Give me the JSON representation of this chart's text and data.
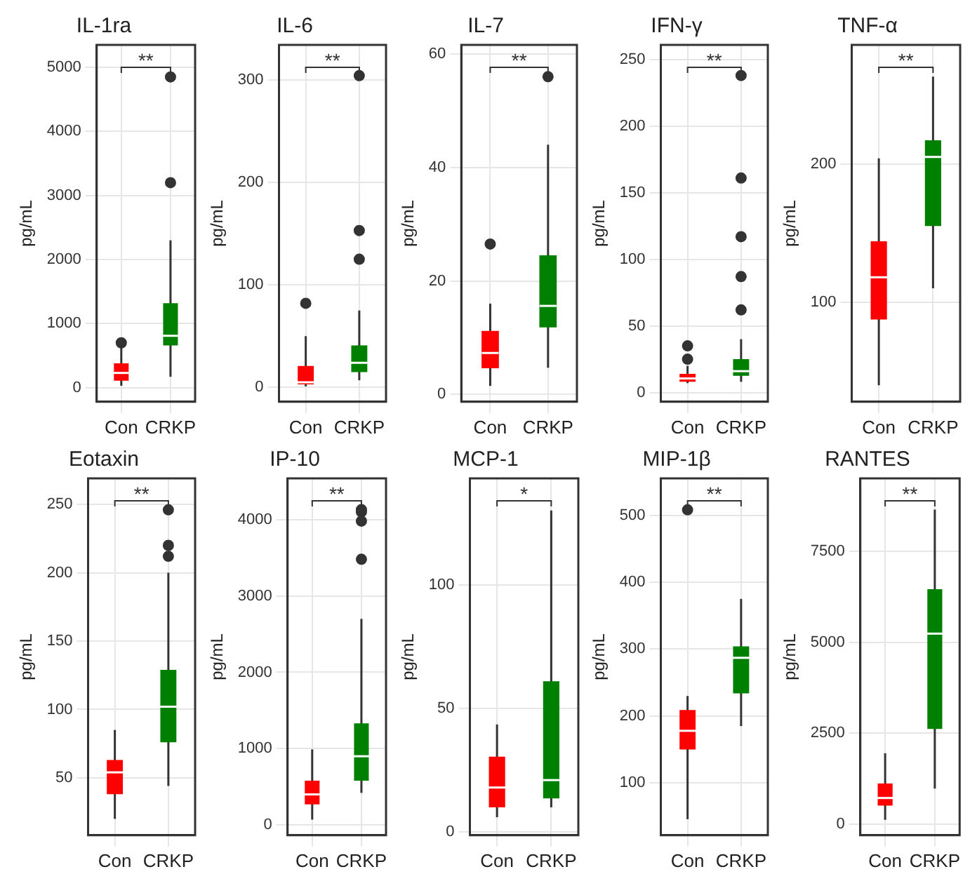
{
  "chart_data": [
    {
      "type": "box",
      "title": "IL-1ra",
      "ylabel": "pg/mL",
      "categories": [
        "Con",
        "CRKP"
      ],
      "colors": [
        "#ff0000",
        "#008000"
      ],
      "ylim": [
        -220,
        5350
      ],
      "yticks": [
        0,
        1000,
        2000,
        3000,
        4000,
        5000
      ],
      "grid": true,
      "annotations": [
        "**"
      ],
      "boxes": [
        {
          "low": 30,
          "q1": 110,
          "median": 230,
          "q3": 380,
          "high": 650,
          "outliers": [
            700
          ]
        },
        {
          "low": 170,
          "q1": 660,
          "median": 810,
          "q3": 1320,
          "high": 2300,
          "outliers": [
            3200,
            4850
          ]
        }
      ]
    },
    {
      "type": "box",
      "title": "IL-6",
      "ylabel": "pg/mL",
      "categories": [
        "Con",
        "CRKP"
      ],
      "colors": [
        "#ff0000",
        "#008000"
      ],
      "ylim": [
        -14,
        334
      ],
      "yticks": [
        0,
        100,
        200,
        300
      ],
      "grid": true,
      "annotations": [
        "**"
      ],
      "boxes": [
        {
          "low": 1,
          "q1": 3,
          "median": 5,
          "q3": 21,
          "high": 50,
          "outliers": [
            82
          ]
        },
        {
          "low": 7,
          "q1": 15,
          "median": 24,
          "q3": 41,
          "high": 75,
          "outliers": [
            125,
            153,
            304
          ]
        }
      ]
    },
    {
      "type": "box",
      "title": "IL-7",
      "ylabel": "pg/mL",
      "categories": [
        "Con",
        "CRKP"
      ],
      "colors": [
        "#ff0000",
        "#008000"
      ],
      "ylim": [
        -1.3,
        61.6
      ],
      "yticks": [
        0,
        20,
        40,
        60
      ],
      "grid": true,
      "annotations": [
        "**"
      ],
      "boxes": [
        {
          "low": 1.5,
          "q1": 4.6,
          "median": 7.3,
          "q3": 11.2,
          "high": 16,
          "outliers": [
            26.5
          ]
        },
        {
          "low": 4.7,
          "q1": 11.8,
          "median": 15.6,
          "q3": 24.5,
          "high": 44,
          "outliers": [
            56
          ]
        }
      ]
    },
    {
      "type": "box",
      "title": "IFN-γ",
      "ylabel": "pg/mL",
      "categories": [
        "Con",
        "CRKP"
      ],
      "colors": [
        "#ff0000",
        "#008000"
      ],
      "ylim": [
        -7,
        261
      ],
      "yticks": [
        0,
        50,
        100,
        150,
        200,
        250
      ],
      "grid": true,
      "annotations": [
        "**"
      ],
      "boxes": [
        {
          "low": 7,
          "q1": 8,
          "median": 10.5,
          "q3": 14,
          "high": 20,
          "outliers": [
            25,
            35
          ]
        },
        {
          "low": 8,
          "q1": 12.5,
          "median": 16,
          "q3": 25,
          "high": 40,
          "outliers": [
            62,
            87,
            117,
            161,
            238
          ]
        }
      ]
    },
    {
      "type": "box",
      "title": "TNF-α",
      "ylabel": "pg/mL",
      "categories": [
        "Con",
        "CRKP"
      ],
      "colors": [
        "#ff0000",
        "#008000"
      ],
      "ylim": [
        28,
        286
      ],
      "yticks": [
        100,
        200
      ],
      "grid": true,
      "annotations": [
        "**"
      ],
      "boxes": [
        {
          "low": 40,
          "q1": 87.5,
          "median": 118,
          "q3": 144,
          "high": 204
        },
        {
          "low": 110,
          "q1": 155,
          "median": 205,
          "q3": 217,
          "high": 263
        }
      ]
    },
    {
      "type": "box",
      "title": "Eotaxin",
      "ylabel": "pg/mL",
      "categories": [
        "Con",
        "CRKP"
      ],
      "colors": [
        "#ff0000",
        "#008000"
      ],
      "ylim": [
        8,
        269
      ],
      "yticks": [
        50,
        100,
        150,
        200,
        250
      ],
      "grid": true,
      "annotations": [
        "**"
      ],
      "boxes": [
        {
          "low": 20,
          "q1": 38,
          "median": 54,
          "q3": 63,
          "high": 85
        },
        {
          "low": 44,
          "q1": 76,
          "median": 102,
          "q3": 129,
          "high": 200,
          "outliers": [
            212,
            220,
            246
          ]
        }
      ]
    },
    {
      "type": "box",
      "title": "IP-10",
      "ylabel": "pg/mL",
      "categories": [
        "Con",
        "CRKP"
      ],
      "colors": [
        "#ff0000",
        "#008000"
      ],
      "ylim": [
        -135,
        4540
      ],
      "yticks": [
        0,
        1000,
        2000,
        3000,
        4000
      ],
      "grid": true,
      "annotations": [
        "**"
      ],
      "boxes": [
        {
          "low": 70,
          "q1": 270,
          "median": 400,
          "q3": 580,
          "high": 990
        },
        {
          "low": 420,
          "q1": 580,
          "median": 900,
          "q3": 1330,
          "high": 2700,
          "outliers": [
            3480,
            3980,
            4100,
            4130
          ]
        }
      ]
    },
    {
      "type": "box",
      "title": "MCP-1",
      "ylabel": "pg/mL",
      "categories": [
        "Con",
        "CRKP"
      ],
      "colors": [
        "#ff0000",
        "#008000"
      ],
      "ylim": [
        -1.3,
        143
      ],
      "yticks": [
        0,
        50,
        100
      ],
      "grid": true,
      "annotations": [
        "*"
      ],
      "boxes": [
        {
          "low": 6,
          "q1": 10,
          "median": 18,
          "q3": 30.5,
          "high": 43.5
        },
        {
          "low": 10,
          "q1": 13.6,
          "median": 21,
          "q3": 61,
          "high": 130
        }
      ]
    },
    {
      "type": "box",
      "title": "MIP-1β",
      "ylabel": "pg/mL",
      "categories": [
        "Con",
        "CRKP"
      ],
      "colors": [
        "#ff0000",
        "#008000"
      ],
      "ylim": [
        22,
        555
      ],
      "yticks": [
        100,
        200,
        300,
        400,
        500
      ],
      "grid": true,
      "annotations": [
        "**"
      ],
      "boxes": [
        {
          "low": 46,
          "q1": 150,
          "median": 178,
          "q3": 209,
          "high": 230,
          "outliers": [
            508
          ]
        },
        {
          "low": 185,
          "q1": 234,
          "median": 287,
          "q3": 304,
          "high": 375
        }
      ]
    },
    {
      "type": "box",
      "title": "RANTES",
      "ylabel": "pg/mL",
      "categories": [
        "Con",
        "CRKP"
      ],
      "colors": [
        "#ff0000",
        "#008000"
      ],
      "ylim": [
        -305,
        9510
      ],
      "yticks": [
        0,
        2500,
        5000,
        7500
      ],
      "grid": true,
      "annotations": [
        "**"
      ],
      "boxes": [
        {
          "low": 120,
          "q1": 510,
          "median": 720,
          "q3": 1120,
          "high": 1950
        },
        {
          "low": 980,
          "q1": 2620,
          "median": 5240,
          "q3": 6460,
          "high": 8650
        }
      ]
    }
  ]
}
